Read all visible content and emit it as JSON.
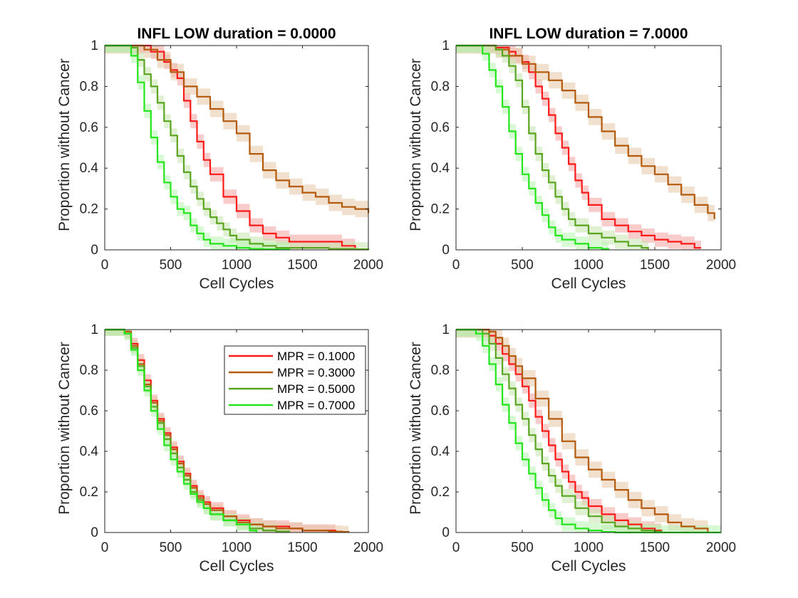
{
  "chart_data": [
    {
      "type": "line",
      "title": "INFL LOW duration = 0.0000",
      "xlabel": "Cell Cycles",
      "ylabel": "Proportion without Cancer",
      "xlim": [
        0,
        2000
      ],
      "ylim": [
        0,
        1
      ],
      "xticks": [
        "0",
        "500",
        "1000",
        "1500",
        "2000"
      ],
      "yticks": [
        "0",
        "0.2",
        "0.4",
        "0.6",
        "0.8",
        "1"
      ],
      "legend": null,
      "series": [
        {
          "color": "#ff1a1a",
          "band_color": "#f4a3a3",
          "band": 0.035,
          "x": [
            0,
            150,
            250,
            350,
            450,
            500,
            550,
            600,
            650,
            700,
            750,
            800,
            900,
            1000,
            1100,
            1200,
            1300,
            1400,
            1500,
            1600,
            1800,
            1900
          ],
          "y": [
            1,
            1,
            1,
            0.97,
            0.92,
            0.88,
            0.84,
            0.73,
            0.63,
            0.53,
            0.44,
            0.37,
            0.26,
            0.19,
            0.12,
            0.08,
            0.06,
            0.04,
            0.04,
            0.04,
            0.02,
            0.01
          ]
        },
        {
          "color": "#b35a0d",
          "band_color": "#e8c6a6",
          "band": 0.04,
          "x": [
            0,
            200,
            300,
            400,
            500,
            600,
            700,
            800,
            900,
            1000,
            1100,
            1200,
            1300,
            1400,
            1500,
            1600,
            1700,
            1800,
            1900,
            2000
          ],
          "y": [
            1,
            1,
            0.98,
            0.93,
            0.87,
            0.8,
            0.75,
            0.69,
            0.63,
            0.57,
            0.47,
            0.39,
            0.34,
            0.31,
            0.28,
            0.26,
            0.23,
            0.21,
            0.2,
            0.18
          ]
        },
        {
          "color": "#5aa51f",
          "band_color": "#c6e3ad",
          "band": 0.035,
          "x": [
            0,
            150,
            200,
            250,
            300,
            350,
            400,
            450,
            500,
            550,
            600,
            650,
            700,
            750,
            800,
            850,
            900,
            950,
            1000,
            1100,
            1200,
            1300,
            1400,
            1500,
            1600,
            1700,
            1800,
            1900,
            2000
          ],
          "y": [
            1,
            1,
            0.99,
            0.93,
            0.86,
            0.8,
            0.72,
            0.63,
            0.56,
            0.46,
            0.38,
            0.31,
            0.25,
            0.2,
            0.16,
            0.13,
            0.1,
            0.07,
            0.05,
            0.03,
            0.02,
            0.01,
            0.01,
            0.01,
            0.01,
            0.005,
            0.005,
            0.003,
            0
          ]
        },
        {
          "color": "#22e61a",
          "band_color": "#b7f4b0",
          "band": 0.035,
          "x": [
            0,
            150,
            200,
            250,
            300,
            350,
            400,
            450,
            500,
            550,
            600,
            650,
            700,
            750,
            800,
            900,
            1000,
            1100,
            1200,
            1300,
            1400
          ],
          "y": [
            1,
            1,
            0.95,
            0.82,
            0.68,
            0.55,
            0.43,
            0.33,
            0.26,
            0.2,
            0.18,
            0.12,
            0.08,
            0.05,
            0.03,
            0.02,
            0.01,
            0.005,
            0.003,
            0.002,
            0
          ]
        }
      ]
    },
    {
      "type": "line",
      "title": "INFL LOW duration = 7.0000",
      "xlabel": "Cell Cycles",
      "ylabel": "Proportion without Cancer",
      "xlim": [
        0,
        2000
      ],
      "ylim": [
        0,
        1
      ],
      "xticks": [
        "0",
        "500",
        "1000",
        "1500",
        "2000"
      ],
      "yticks": [
        "0",
        "0.2",
        "0.4",
        "0.6",
        "0.8",
        "1"
      ],
      "legend": null,
      "series": [
        {
          "color": "#ff1a1a",
          "band_color": "#f4a3a3",
          "band": 0.035,
          "x": [
            0,
            200,
            300,
            400,
            450,
            500,
            550,
            600,
            650,
            700,
            750,
            800,
            850,
            900,
            950,
            1000,
            1100,
            1200,
            1300,
            1400,
            1500,
            1600,
            1700,
            1800,
            1850
          ],
          "y": [
            1,
            1,
            0.99,
            0.97,
            0.95,
            0.92,
            0.87,
            0.8,
            0.74,
            0.66,
            0.57,
            0.5,
            0.42,
            0.34,
            0.28,
            0.22,
            0.15,
            0.12,
            0.09,
            0.07,
            0.05,
            0.04,
            0.03,
            0.01,
            0.01
          ]
        },
        {
          "color": "#b35a0d",
          "band_color": "#e8c6a6",
          "band": 0.04,
          "x": [
            0,
            200,
            300,
            400,
            500,
            600,
            700,
            800,
            900,
            1000,
            1100,
            1200,
            1300,
            1400,
            1500,
            1600,
            1700,
            1800,
            1900,
            1950
          ],
          "y": [
            1,
            1,
            0.98,
            0.95,
            0.91,
            0.87,
            0.83,
            0.78,
            0.72,
            0.65,
            0.58,
            0.51,
            0.46,
            0.41,
            0.37,
            0.32,
            0.27,
            0.22,
            0.18,
            0.15
          ]
        },
        {
          "color": "#5aa51f",
          "band_color": "#c6e3ad",
          "band": 0.035,
          "x": [
            0,
            150,
            200,
            250,
            300,
            350,
            400,
            450,
            500,
            550,
            600,
            650,
            700,
            750,
            800,
            850,
            900,
            1000,
            1100,
            1200,
            1300,
            1400,
            1450
          ],
          "y": [
            1,
            1,
            1,
            1,
            0.98,
            0.95,
            0.9,
            0.83,
            0.7,
            0.57,
            0.47,
            0.39,
            0.33,
            0.26,
            0.2,
            0.15,
            0.12,
            0.08,
            0.06,
            0.04,
            0.02,
            0.01,
            0
          ]
        },
        {
          "color": "#22e61a",
          "band_color": "#b7f4b0",
          "band": 0.035,
          "x": [
            0,
            150,
            200,
            250,
            300,
            350,
            400,
            450,
            500,
            550,
            600,
            650,
            700,
            750,
            800,
            900,
            1000,
            1100,
            1150
          ],
          "y": [
            1,
            1,
            0.96,
            0.88,
            0.8,
            0.7,
            0.58,
            0.47,
            0.37,
            0.3,
            0.23,
            0.17,
            0.11,
            0.07,
            0.05,
            0.03,
            0.01,
            0.005,
            0
          ]
        }
      ]
    },
    {
      "type": "line",
      "title": "",
      "xlabel": "Cell Cycles",
      "ylabel": "Proportion without Cancer",
      "xlim": [
        0,
        2000
      ],
      "ylim": [
        0,
        1
      ],
      "xticks": [
        "0",
        "500",
        "1000",
        "1500",
        "2000"
      ],
      "yticks": [
        "0",
        "0.2",
        "0.4",
        "0.6",
        "0.8",
        "1"
      ],
      "legend": {
        "placement": "top-right",
        "entries": [
          {
            "label": "MPR = 0.1000",
            "color": "#ff1a1a"
          },
          {
            "label": "MPR = 0.3000",
            "color": "#b35a0d"
          },
          {
            "label": "MPR = 0.5000",
            "color": "#5aa51f"
          },
          {
            "label": "MPR = 0.7000",
            "color": "#22e61a"
          }
        ]
      },
      "series": [
        {
          "color": "#ff1a1a",
          "band_color": "#f4a3a3",
          "band": 0.03,
          "x": [
            0,
            100,
            150,
            200,
            250,
            300,
            350,
            400,
            450,
            500,
            550,
            600,
            650,
            700,
            750,
            800,
            900,
            1000,
            1100,
            1200,
            1300,
            1400,
            1500,
            1600,
            1700,
            1750
          ],
          "y": [
            1,
            1,
            0.99,
            0.93,
            0.85,
            0.75,
            0.65,
            0.56,
            0.49,
            0.42,
            0.35,
            0.29,
            0.23,
            0.18,
            0.15,
            0.12,
            0.08,
            0.06,
            0.04,
            0.03,
            0.03,
            0.02,
            0.01,
            0.01,
            0.01,
            0
          ]
        },
        {
          "color": "#b35a0d",
          "band_color": "#e8c6a6",
          "band": 0.03,
          "x": [
            0,
            100,
            150,
            200,
            250,
            300,
            350,
            400,
            450,
            500,
            550,
            600,
            650,
            700,
            750,
            800,
            900,
            1000,
            1100,
            1200,
            1300,
            1400,
            1500,
            1600,
            1700,
            1800,
            1850
          ],
          "y": [
            1,
            1,
            0.99,
            0.92,
            0.83,
            0.73,
            0.64,
            0.55,
            0.48,
            0.41,
            0.34,
            0.28,
            0.22,
            0.17,
            0.14,
            0.11,
            0.08,
            0.05,
            0.04,
            0.03,
            0.02,
            0.02,
            0.01,
            0.01,
            0.005,
            0.003,
            0
          ]
        },
        {
          "color": "#5aa51f",
          "band_color": "#c6e3ad",
          "band": 0.03,
          "x": [
            0,
            100,
            150,
            200,
            250,
            300,
            350,
            400,
            450,
            500,
            550,
            600,
            650,
            700,
            750,
            800,
            900,
            1000,
            1100,
            1200,
            1300,
            1400
          ],
          "y": [
            1,
            1,
            0.98,
            0.91,
            0.82,
            0.72,
            0.62,
            0.54,
            0.46,
            0.39,
            0.32,
            0.26,
            0.2,
            0.16,
            0.12,
            0.09,
            0.06,
            0.04,
            0.02,
            0.01,
            0.005,
            0
          ]
        },
        {
          "color": "#22e61a",
          "band_color": "#b7f4b0",
          "band": 0.03,
          "x": [
            0,
            100,
            150,
            200,
            250,
            300,
            350,
            400,
            450,
            500,
            550,
            600,
            650,
            700,
            750,
            800,
            900,
            1000,
            1100,
            1150
          ],
          "y": [
            1,
            1,
            0.98,
            0.9,
            0.8,
            0.7,
            0.6,
            0.51,
            0.43,
            0.36,
            0.3,
            0.24,
            0.19,
            0.15,
            0.12,
            0.09,
            0.06,
            0.04,
            0.01,
            0
          ]
        }
      ]
    },
    {
      "type": "line",
      "title": "",
      "xlabel": "Cell Cycles",
      "ylabel": "Proportion without Cancer",
      "xlim": [
        0,
        2000
      ],
      "ylim": [
        0,
        1
      ],
      "xticks": [
        "0",
        "500",
        "1000",
        "1500",
        "2000"
      ],
      "yticks": [
        "0",
        "0.2",
        "0.4",
        "0.6",
        "0.8",
        "1"
      ],
      "legend": null,
      "series": [
        {
          "color": "#ff1a1a",
          "band_color": "#f4a3a3",
          "band": 0.035,
          "x": [
            0,
            150,
            200,
            250,
            300,
            350,
            400,
            450,
            500,
            550,
            600,
            650,
            700,
            750,
            800,
            850,
            900,
            950,
            1000,
            1100,
            1200,
            1300,
            1400,
            1500,
            1550
          ],
          "y": [
            1,
            1,
            1,
            0.97,
            0.93,
            0.88,
            0.83,
            0.78,
            0.72,
            0.65,
            0.57,
            0.5,
            0.43,
            0.36,
            0.3,
            0.25,
            0.2,
            0.17,
            0.13,
            0.09,
            0.06,
            0.04,
            0.02,
            0.01,
            0
          ]
        },
        {
          "color": "#b35a0d",
          "band_color": "#e8c6a6",
          "band": 0.04,
          "x": [
            0,
            200,
            250,
            300,
            350,
            400,
            450,
            500,
            600,
            700,
            800,
            900,
            1000,
            1100,
            1200,
            1300,
            1400,
            1500,
            1600,
            1700,
            1800,
            1900
          ],
          "y": [
            1,
            1,
            0.99,
            0.96,
            0.92,
            0.87,
            0.82,
            0.76,
            0.66,
            0.56,
            0.45,
            0.37,
            0.31,
            0.26,
            0.21,
            0.16,
            0.12,
            0.09,
            0.05,
            0.03,
            0.02,
            0
          ]
        },
        {
          "color": "#5aa51f",
          "band_color": "#c6e3ad",
          "band": 0.035,
          "x": [
            0,
            150,
            200,
            250,
            300,
            350,
            400,
            450,
            500,
            550,
            600,
            650,
            700,
            750,
            800,
            900,
            1000,
            1100,
            1200,
            1300,
            1400,
            1500,
            1550
          ],
          "y": [
            1,
            1,
            0.98,
            0.93,
            0.86,
            0.78,
            0.71,
            0.63,
            0.56,
            0.48,
            0.41,
            0.34,
            0.28,
            0.23,
            0.18,
            0.12,
            0.08,
            0.05,
            0.03,
            0.02,
            0.01,
            0.005,
            0
          ]
        },
        {
          "color": "#22e61a",
          "band_color": "#b7f4b0",
          "band": 0.035,
          "x": [
            0,
            100,
            150,
            200,
            250,
            300,
            350,
            400,
            450,
            500,
            550,
            600,
            650,
            700,
            750,
            800,
            900,
            1000,
            1100,
            1200,
            2000
          ],
          "y": [
            1,
            1,
            0.98,
            0.92,
            0.83,
            0.73,
            0.63,
            0.54,
            0.44,
            0.36,
            0.29,
            0.22,
            0.16,
            0.11,
            0.07,
            0.04,
            0.02,
            0.01,
            0.003,
            0,
            0
          ]
        }
      ]
    }
  ]
}
